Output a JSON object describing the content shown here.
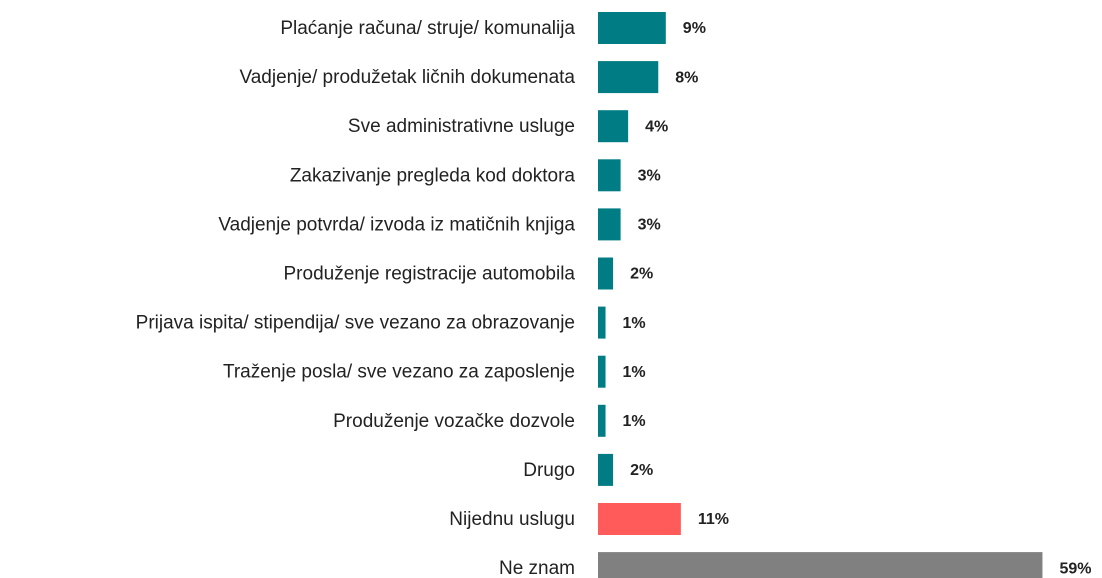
{
  "chart_data": {
    "type": "bar",
    "orientation": "horizontal",
    "categories": [
      "Plaćanje računa/ struje/ komunalija",
      "Vadjenje/ produžetak ličnih dokumenata",
      "Sve administrativne usluge",
      "Zakazivanje pregleda kod doktora",
      "Vadjenje potvrda/ izvoda iz matičnih knjiga",
      "Produženje registracije automobila",
      "Prijava ispita/ stipendija/ sve vezano za obrazovanje",
      "Traženje posla/ sve vezano za zaposlenje",
      "Produženje vozačke dozvole",
      "Drugo",
      "Nijednu uslugu",
      "Ne znam"
    ],
    "values": [
      9,
      8,
      4,
      3,
      3,
      2,
      1,
      1,
      1,
      2,
      11,
      59
    ],
    "value_labels": [
      "9%",
      "8%",
      "4%",
      "3%",
      "3%",
      "2%",
      "1%",
      "1%",
      "1%",
      "2%",
      "11%",
      "59%"
    ],
    "colors": [
      "#007c85",
      "#007c85",
      "#007c85",
      "#007c85",
      "#007c85",
      "#007c85",
      "#007c85",
      "#007c85",
      "#007c85",
      "#007c85",
      "#ff5b5b",
      "#808080"
    ],
    "xlim": [
      0,
      60
    ]
  }
}
